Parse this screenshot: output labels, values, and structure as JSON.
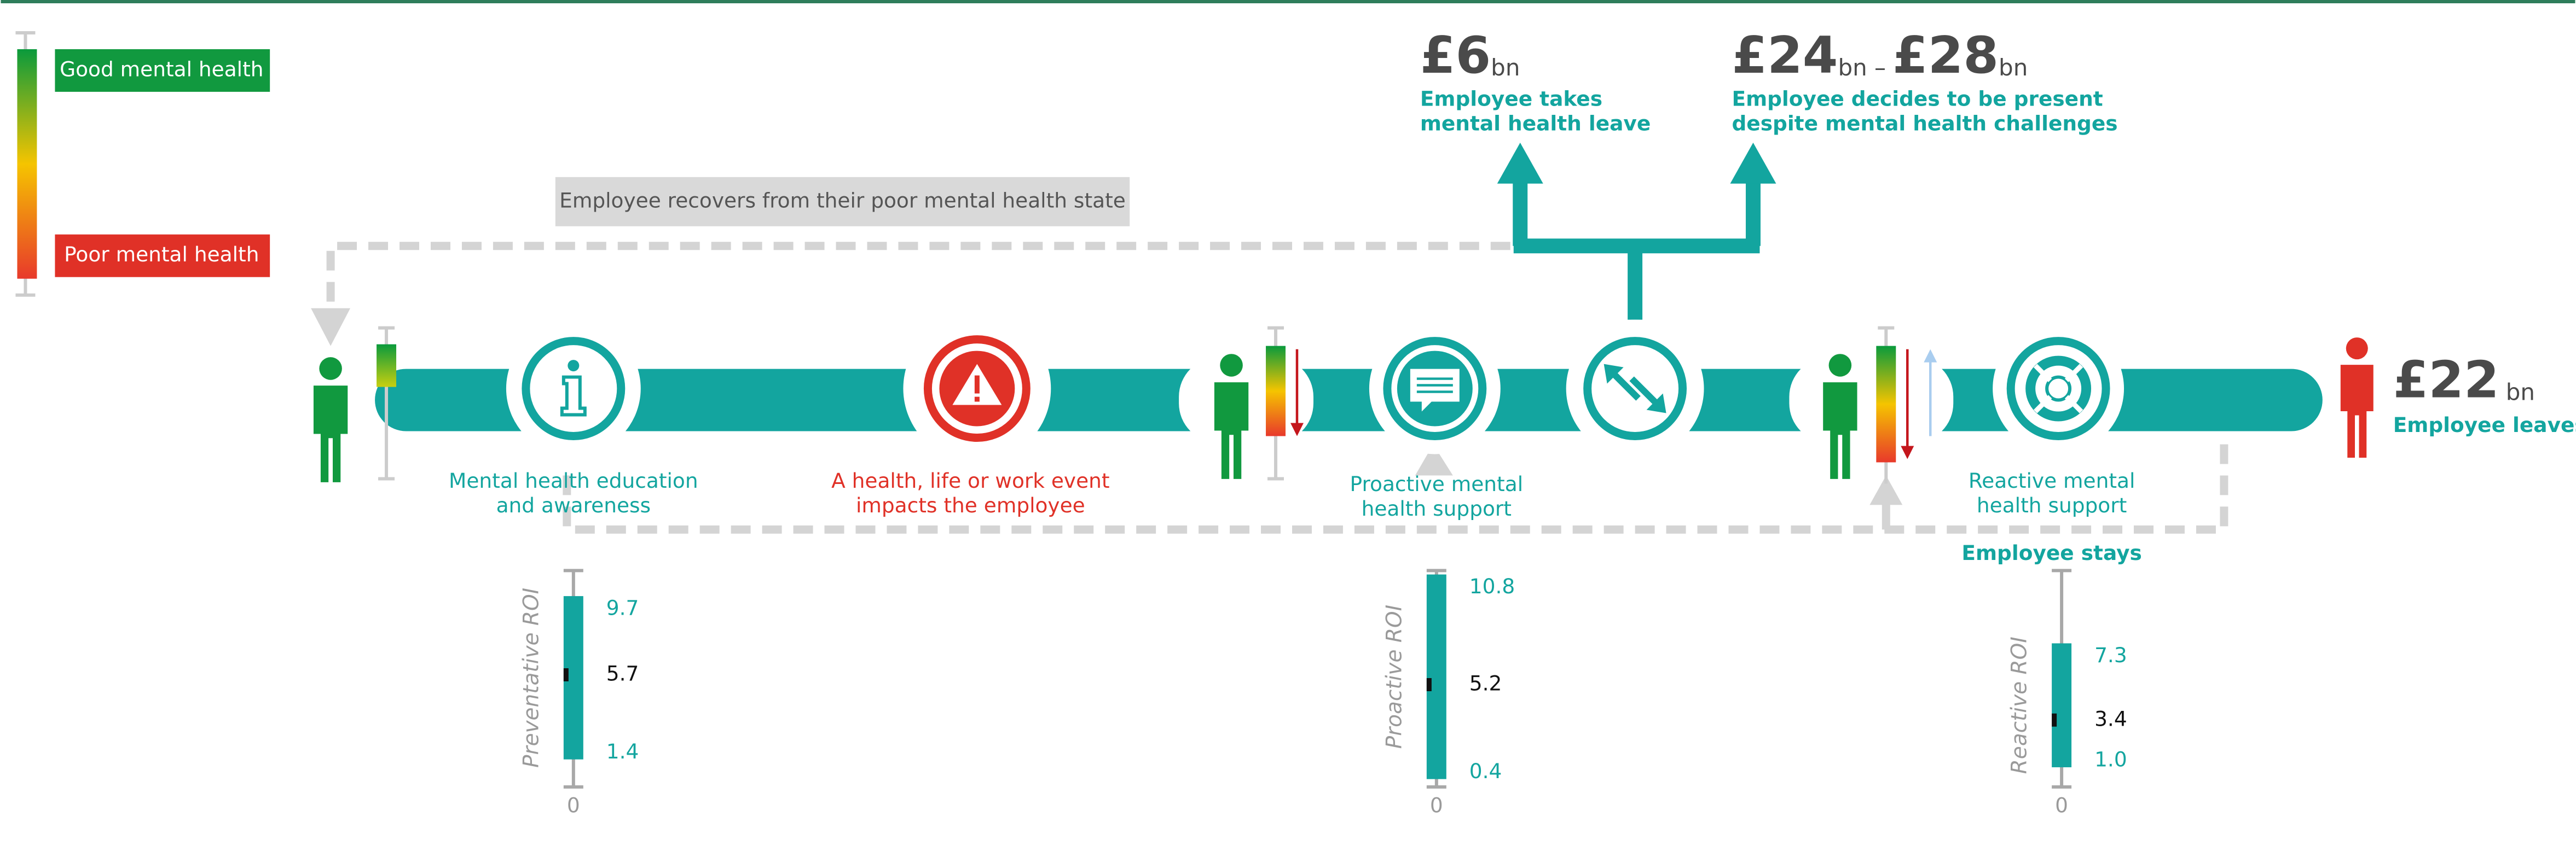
{
  "legend": {
    "good": "Good mental health",
    "poor": "Poor mental health"
  },
  "recovery_note": "Employee recovers from their poor mental health state",
  "leave": {
    "amount": "£6",
    "unit": "bn",
    "lines": [
      "Employee takes",
      "mental health leave"
    ]
  },
  "presenteeism": {
    "amount_low": "£24",
    "unit_low": "bn –",
    "amount_high": "£28",
    "unit_high": "bn",
    "lines": [
      "Employee decides to be present",
      "despite mental health challenges"
    ]
  },
  "leaves": {
    "amount": "£22",
    "unit": "bn",
    "label": "Employee leaves"
  },
  "stages": [
    {
      "lines": [
        "Mental health education",
        "and awareness"
      ]
    },
    {
      "lines": [
        "A health, life or work event",
        "impacts the employee"
      ]
    },
    {
      "lines": [
        "Proactive mental",
        "health support"
      ]
    },
    {
      "lines": [
        "Reactive mental",
        "health support"
      ]
    }
  ],
  "employee_stays": "Employee stays",
  "roi": [
    {
      "label": "Preventative ROI",
      "axis_zero": 0,
      "high": 9.7,
      "mid": 5.7,
      "low": 1.4
    },
    {
      "label": "Proactive ROI",
      "axis_zero": 0,
      "high": 10.8,
      "mid": 5.2,
      "low": 0.4
    },
    {
      "label": "Reactive ROI",
      "axis_zero": 0,
      "high": 7.3,
      "mid": 3.4,
      "low": {
        "value": 1,
        "label": "1.0"
      }
    }
  ]
}
